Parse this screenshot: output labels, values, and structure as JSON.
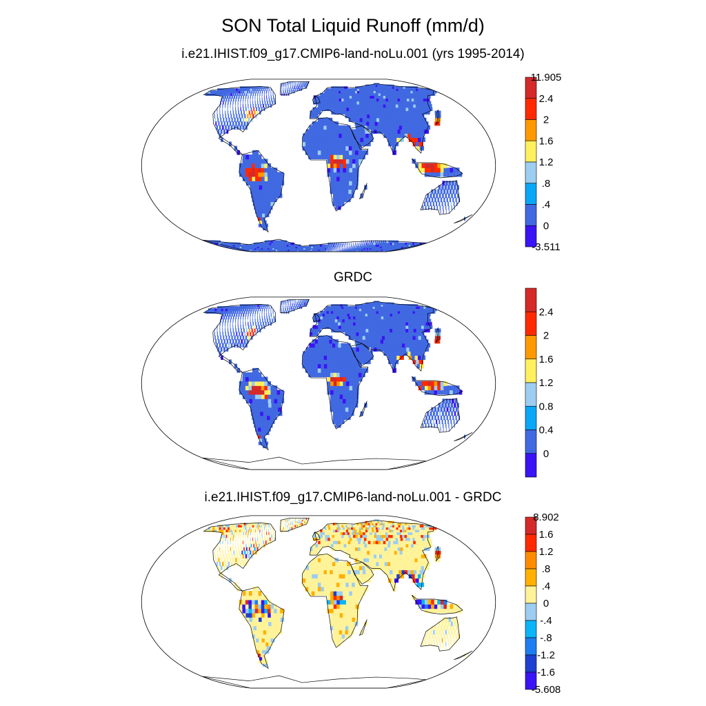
{
  "title": "SON Total Liquid Runoff (mm/d)",
  "panels": [
    {
      "subtitle": "i.e21.IHIST.f09_g17.CMIP6-land-noLu.001 (yrs 1995-2014)",
      "colorbar": {
        "colors": [
          "#3a14f5",
          "#4169e1",
          "#0aa6f7",
          "#9dcdf0",
          "#fff060",
          "#ff9900",
          "#ff2a00",
          "#d42a2a"
        ],
        "labels": [
          "-3.511",
          "0",
          ".4",
          ".8",
          "1.2",
          "1.6",
          "2",
          "2.4",
          "11.905"
        ]
      }
    },
    {
      "subtitle": "GRDC",
      "colorbar": {
        "colors": [
          "#3a14f5",
          "#4169e1",
          "#0aa6f7",
          "#9dcdf0",
          "#fff060",
          "#ff9900",
          "#ff2a00",
          "#d42a2a"
        ],
        "labels": [
          "0",
          "0.4",
          "0.8",
          "1.2",
          "1.6",
          "2",
          "2.4"
        ]
      }
    },
    {
      "subtitle": "i.e21.IHIST.f09_g17.CMIP6-land-noLu.001 - GRDC",
      "colorbar": {
        "colors": [
          "#3a14f5",
          "#1f3fd0",
          "#1e7df0",
          "#0ab4f7",
          "#9dcdf0",
          "#fff39a",
          "#ffb000",
          "#ff8c00",
          "#ff2a00",
          "#d42a2a"
        ],
        "labels": [
          "-5.608",
          "-1.6",
          "-1.2",
          "-.8",
          "-.4",
          "0",
          ".4",
          ".8",
          "1.2",
          "1.6",
          "8.902"
        ]
      }
    }
  ],
  "map_style": {
    "land_colors": [
      "#4169e1",
      "#fff39a"
    ],
    "hot_colors": [
      "#ff2a00",
      "#d42a2a",
      "#ff9900",
      "#fff060",
      "#9dcdf0",
      "#0aa6f7",
      "#3a14f5"
    ]
  }
}
